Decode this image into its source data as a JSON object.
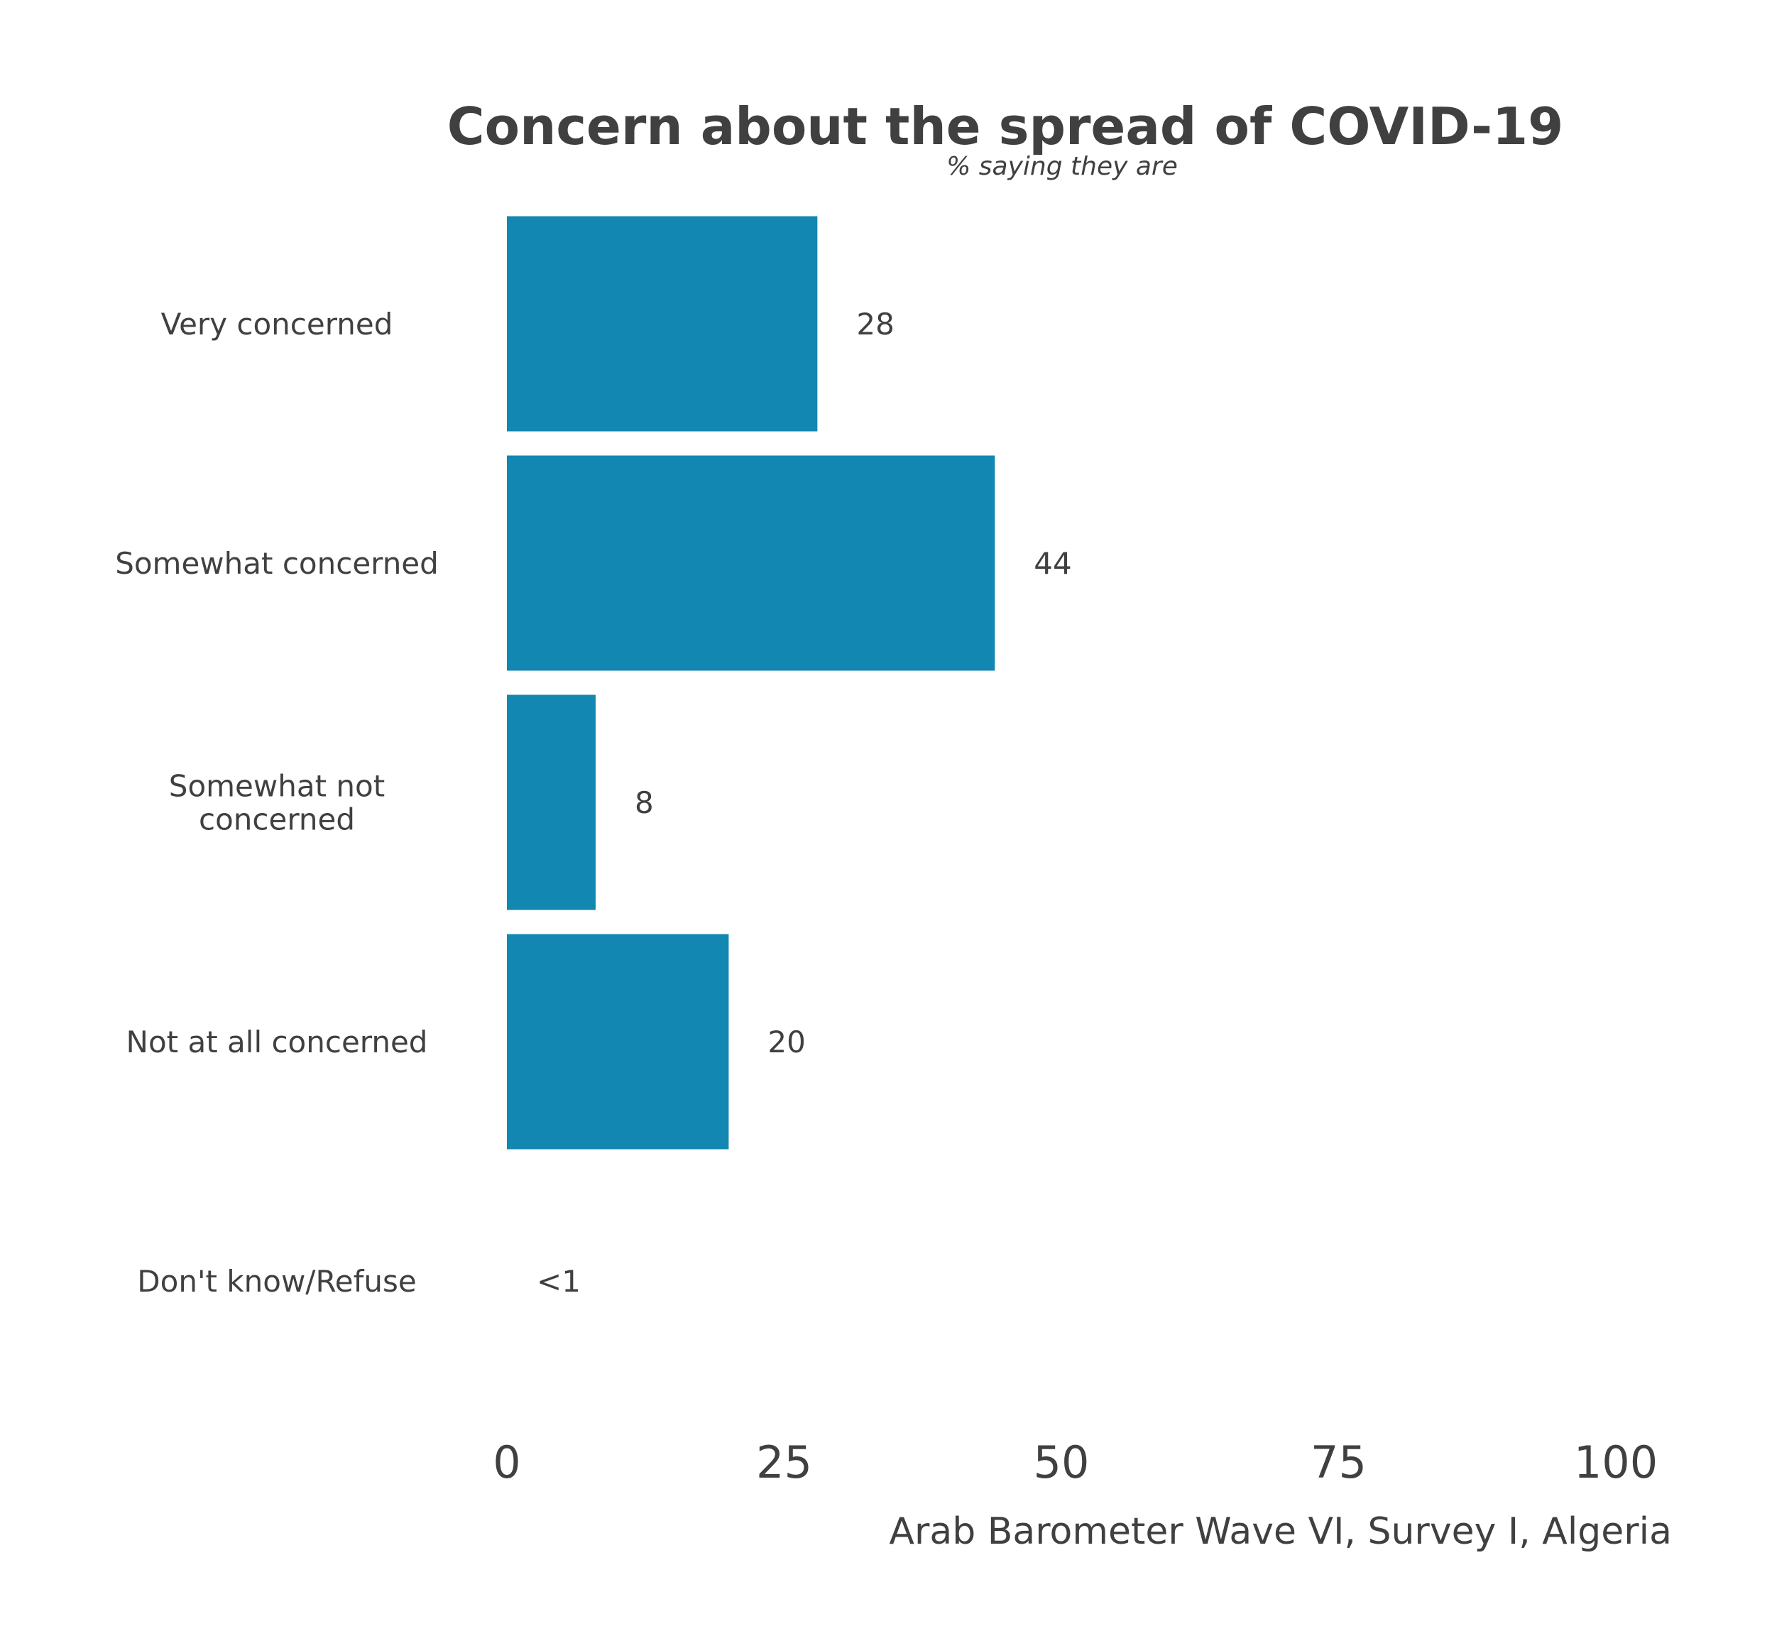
{
  "chart_data": {
    "type": "bar",
    "orientation": "horizontal",
    "title": "Concern about the spread of COVID-19",
    "subtitle": "% saying they are",
    "categories": [
      [
        "Very concerned"
      ],
      [
        "Somewhat concerned"
      ],
      [
        "Somewhat not",
        "concerned"
      ],
      [
        "Not at all concerned"
      ],
      [
        "Don't know/Refuse"
      ]
    ],
    "values": [
      28,
      44,
      8,
      20,
      0.3
    ],
    "value_labels": [
      "28",
      "44",
      "8",
      "20",
      "<1"
    ],
    "xlim": [
      0,
      100
    ],
    "x_ticks": [
      0,
      25,
      50,
      75,
      100
    ],
    "x_tick_labels": [
      "0",
      "25",
      "50",
      "75",
      "100"
    ],
    "caption": "Arab Barometer Wave VI, Survey I, Algeria",
    "bar_color": "#1287B1",
    "text_color": "#404040",
    "grid": false,
    "legend": "none"
  }
}
